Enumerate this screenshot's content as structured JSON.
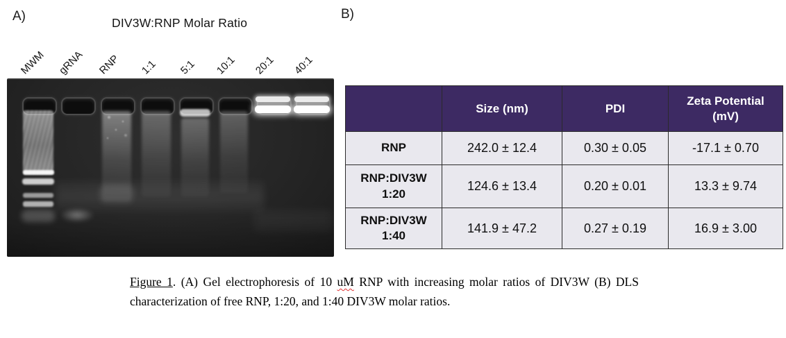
{
  "panel_a": {
    "label": "A)",
    "title": "DIV3W:RNP Molar Ratio",
    "lane_labels": [
      "MWM",
      "gRNA",
      "RNP",
      "1:1",
      "5:1",
      "10:1",
      "20:1",
      "40:1"
    ]
  },
  "panel_b": {
    "label": "B)",
    "table": {
      "columns": [
        "",
        "Size (nm)",
        "PDI",
        "Zeta Potential (mV)"
      ],
      "rows": [
        {
          "label": "RNP",
          "size_nm": "242.0 ± 12.4",
          "pdi": "0.30 ± 0.05",
          "zeta_mv": "-17.1 ± 0.70"
        },
        {
          "label": "RNP:DIV3W\n1:20",
          "size_nm": "124.6 ± 13.4",
          "pdi": "0.20 ± 0.01",
          "zeta_mv": "13.3 ± 9.74"
        },
        {
          "label": "RNP:DIV3W\n1:40",
          "size_nm": "141.9 ± 47.2",
          "pdi": "0.27 ± 0.19",
          "zeta_mv": "16.9 ± 3.00"
        }
      ],
      "colors": {
        "header_bg": "#3d2a63",
        "header_text": "#ffffff",
        "body_bg": "#e9e8ee",
        "border": "#2a2a2a"
      }
    }
  },
  "caption": {
    "figure_label": "Figure 1",
    "segment_after_label": ". (A) Gel electrophoresis of 10 ",
    "misspelled_word": "uM",
    "segment_rest": " RNP with increasing molar ratios of DIV3W (B) DLS characterization of free RNP, 1:20, and 1:40 DIV3W molar ratios."
  }
}
